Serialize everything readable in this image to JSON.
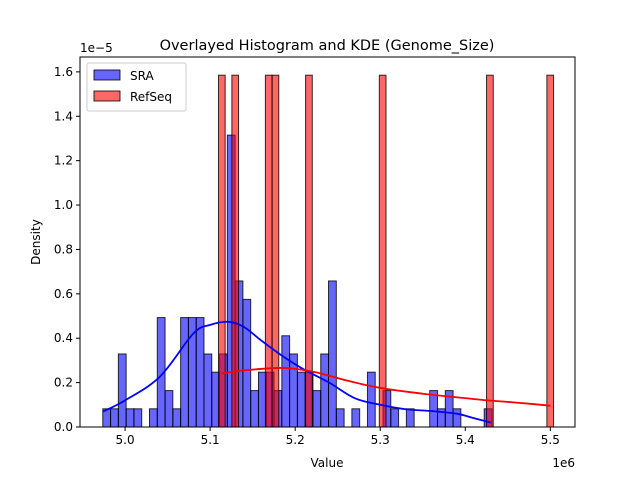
{
  "chart_data": {
    "type": "bar",
    "title": "Overlayed Histogram and KDE (Genome_Size)",
    "xlabel": "Value",
    "ylabel": "Density",
    "x_offset_label": "1e6",
    "y_offset_label": "1e−5",
    "xlim": [
      4947000,
      5529000
    ],
    "ylim": [
      0,
      1.667
    ],
    "y_units": "1e-5",
    "x_ticks": [
      5000000,
      5100000,
      5200000,
      5300000,
      5400000,
      5500000
    ],
    "x_tick_labels": [
      "5.0",
      "5.1",
      "5.2",
      "5.3",
      "5.4",
      "5.5"
    ],
    "y_ticks": [
      0,
      0.2,
      0.4,
      0.6,
      0.8,
      1.0,
      1.2,
      1.4,
      1.6
    ],
    "y_tick_labels": [
      "0.0",
      "0.2",
      "0.4",
      "0.6",
      "0.8",
      "1.0",
      "1.2",
      "1.4",
      "1.6"
    ],
    "grid": false,
    "legend_position": "top-left",
    "series": [
      {
        "name": "SRA",
        "color": "#0000ff",
        "bin_start": 4973800,
        "bin_width": 9152,
        "densities": [
          0.082,
          0.082,
          0.329,
          0.082,
          0.082,
          0,
          0.082,
          0.493,
          0.164,
          0.082,
          0.493,
          0.493,
          0.493,
          0.329,
          0.247,
          0.329,
          1.315,
          0.658,
          0.575,
          0.164,
          0.247,
          0.247,
          0.164,
          0.411,
          0.329,
          0.247,
          0.247,
          0.164,
          0.329,
          0.658,
          0.082,
          0,
          0.082,
          0,
          0.247,
          0,
          0.164,
          0.082,
          0,
          0.082,
          0,
          0,
          0.164,
          0.082,
          0.164,
          0.082,
          0,
          0,
          0,
          0.082
        ],
        "kde": [
          [
            4973800,
            0.069
          ],
          [
            5000000,
            0.12
          ],
          [
            5041000,
            0.227
          ],
          [
            5080000,
            0.42
          ],
          [
            5100000,
            0.46
          ],
          [
            5122000,
            0.474
          ],
          [
            5140000,
            0.45
          ],
          [
            5160000,
            0.39
          ],
          [
            5185000,
            0.32
          ],
          [
            5210000,
            0.26
          ],
          [
            5240000,
            0.2
          ],
          [
            5270000,
            0.13
          ],
          [
            5300000,
            0.1
          ],
          [
            5330000,
            0.08
          ],
          [
            5360000,
            0.072
          ],
          [
            5390000,
            0.06
          ],
          [
            5410000,
            0.04
          ],
          [
            5430000,
            0.02
          ]
        ]
      },
      {
        "name": "RefSeq",
        "color": "#ff0000",
        "bin_start": 5109800,
        "bin_width": 7880,
        "densities": [
          1.585,
          0,
          1.585,
          0,
          0,
          0,
          0,
          1.585,
          1.585,
          0,
          0,
          0,
          0,
          1.585,
          0,
          0,
          0,
          0,
          0,
          0,
          0,
          0,
          0,
          0,
          1.585,
          0,
          0,
          0,
          0,
          0,
          0,
          0,
          0,
          0,
          0,
          0,
          0,
          0,
          0,
          0,
          1.585,
          0,
          0,
          0,
          0,
          0,
          0,
          0,
          0,
          1.585
        ],
        "kde": [
          [
            5113000,
            0.24
          ],
          [
            5140000,
            0.255
          ],
          [
            5185000,
            0.266
          ],
          [
            5220000,
            0.25
          ],
          [
            5260000,
            0.21
          ],
          [
            5300000,
            0.176
          ],
          [
            5350000,
            0.15
          ],
          [
            5400000,
            0.13
          ],
          [
            5426000,
            0.12
          ],
          [
            5460000,
            0.11
          ],
          [
            5500000,
            0.096
          ]
        ]
      }
    ]
  }
}
